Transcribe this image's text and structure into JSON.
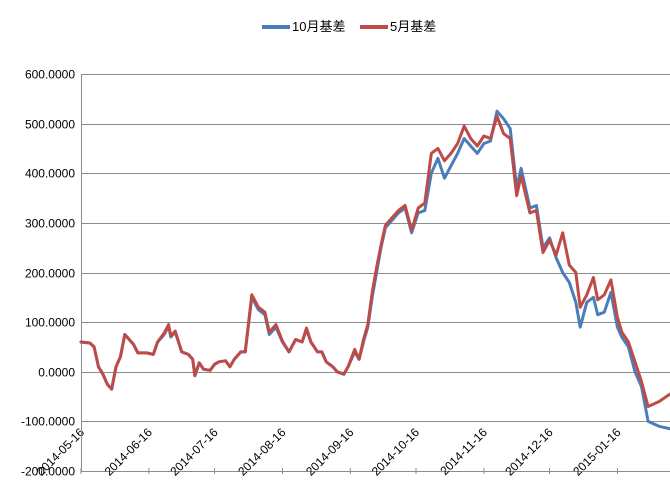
{
  "chart_data": {
    "type": "line",
    "title": "",
    "xlabel": "",
    "ylabel": "",
    "ylim": [
      -200,
      600
    ],
    "yticks": [
      "600.0000",
      "500.0000",
      "400.0000",
      "300.0000",
      "200.0000",
      "100.0000",
      "0.0000",
      "-100.0000",
      "-200.0000"
    ],
    "ytick_values": [
      600,
      500,
      400,
      300,
      200,
      100,
      0,
      -100,
      -200
    ],
    "xticks": [
      "2014-05-16",
      "2014-06-16",
      "2014-07-16",
      "2014-08-16",
      "2014-09-16",
      "2014-10-16",
      "2014-11-16",
      "2014-12-16",
      "2015-01-16"
    ],
    "xlim": [
      "2014-05-16",
      "2015-02-09"
    ],
    "grid": true,
    "legend_position": "top-center",
    "series": [
      {
        "name": "10月基差",
        "color": "#4a7ebb",
        "points": [
          [
            "2014-05-16",
            60
          ],
          [
            "2014-05-20",
            58
          ],
          [
            "2014-05-22",
            50
          ],
          [
            "2014-05-24",
            10
          ],
          [
            "2014-05-26",
            -5
          ],
          [
            "2014-05-28",
            -25
          ],
          [
            "2014-05-30",
            -35
          ],
          [
            "2014-06-01",
            10
          ],
          [
            "2014-06-03",
            30
          ],
          [
            "2014-06-05",
            75
          ],
          [
            "2014-06-09",
            55
          ],
          [
            "2014-06-11",
            38
          ],
          [
            "2014-06-15",
            38
          ],
          [
            "2014-06-18",
            35
          ],
          [
            "2014-06-20",
            60
          ],
          [
            "2014-06-23",
            75
          ],
          [
            "2014-06-25",
            92
          ],
          [
            "2014-06-26",
            70
          ],
          [
            "2014-06-28",
            80
          ],
          [
            "2014-07-01",
            40
          ],
          [
            "2014-07-04",
            35
          ],
          [
            "2014-07-06",
            25
          ],
          [
            "2014-07-07",
            -8
          ],
          [
            "2014-07-09",
            18
          ],
          [
            "2014-07-11",
            5
          ],
          [
            "2014-07-14",
            3
          ],
          [
            "2014-07-16",
            15
          ],
          [
            "2014-07-18",
            20
          ],
          [
            "2014-07-21",
            22
          ],
          [
            "2014-07-23",
            10
          ],
          [
            "2014-07-25",
            25
          ],
          [
            "2014-07-28",
            40
          ],
          [
            "2014-07-30",
            40
          ],
          [
            "2014-08-02",
            150
          ],
          [
            "2014-08-05",
            125
          ],
          [
            "2014-08-08",
            115
          ],
          [
            "2014-08-10",
            75
          ],
          [
            "2014-08-13",
            90
          ],
          [
            "2014-08-16",
            60
          ],
          [
            "2014-08-19",
            40
          ],
          [
            "2014-08-22",
            65
          ],
          [
            "2014-08-25",
            60
          ],
          [
            "2014-08-27",
            85
          ],
          [
            "2014-08-29",
            60
          ],
          [
            "2014-09-01",
            40
          ],
          [
            "2014-09-03",
            40
          ],
          [
            "2014-09-05",
            20
          ],
          [
            "2014-09-08",
            10
          ],
          [
            "2014-09-10",
            0
          ],
          [
            "2014-09-13",
            -5
          ],
          [
            "2014-09-15",
            10
          ],
          [
            "2014-09-18",
            40
          ],
          [
            "2014-09-20",
            25
          ],
          [
            "2014-09-22",
            60
          ],
          [
            "2014-09-24",
            90
          ],
          [
            "2014-09-26",
            150
          ],
          [
            "2014-09-28",
            200
          ],
          [
            "2014-09-30",
            250
          ],
          [
            "2014-10-02",
            290
          ],
          [
            "2014-10-04",
            300
          ],
          [
            "2014-10-08",
            320
          ],
          [
            "2014-10-11",
            330
          ],
          [
            "2014-10-14",
            280
          ],
          [
            "2014-10-17",
            320
          ],
          [
            "2014-10-20",
            325
          ],
          [
            "2014-10-23",
            400
          ],
          [
            "2014-10-26",
            430
          ],
          [
            "2014-10-29",
            390
          ],
          [
            "2014-11-01",
            415
          ],
          [
            "2014-11-04",
            440
          ],
          [
            "2014-11-07",
            470
          ],
          [
            "2014-11-10",
            455
          ],
          [
            "2014-11-13",
            440
          ],
          [
            "2014-11-16",
            460
          ],
          [
            "2014-11-19",
            465
          ],
          [
            "2014-11-22",
            525
          ],
          [
            "2014-11-25",
            510
          ],
          [
            "2014-11-28",
            490
          ],
          [
            "2014-12-01",
            370
          ],
          [
            "2014-12-03",
            410
          ],
          [
            "2014-12-07",
            330
          ],
          [
            "2014-12-10",
            335
          ],
          [
            "2014-12-13",
            250
          ],
          [
            "2014-12-16",
            270
          ],
          [
            "2014-12-19",
            230
          ],
          [
            "2014-12-22",
            200
          ],
          [
            "2014-12-25",
            180
          ],
          [
            "2014-12-28",
            140
          ],
          [
            "2014-12-30",
            90
          ],
          [
            "2015-01-02",
            140
          ],
          [
            "2015-01-05",
            150
          ],
          [
            "2015-01-07",
            115
          ],
          [
            "2015-01-10",
            120
          ],
          [
            "2015-01-13",
            160
          ],
          [
            "2015-01-16",
            90
          ],
          [
            "2015-01-18",
            70
          ],
          [
            "2015-01-21",
            50
          ],
          [
            "2015-01-24",
            0
          ],
          [
            "2015-01-27",
            -30
          ],
          [
            "2015-01-30",
            -100
          ],
          [
            "2015-02-04",
            -110
          ],
          [
            "2015-02-09",
            -115
          ]
        ]
      },
      {
        "name": "5月基差",
        "color": "#be4b48",
        "points": [
          [
            "2014-05-16",
            60
          ],
          [
            "2014-05-20",
            58
          ],
          [
            "2014-05-22",
            50
          ],
          [
            "2014-05-24",
            10
          ],
          [
            "2014-05-26",
            -5
          ],
          [
            "2014-05-28",
            -25
          ],
          [
            "2014-05-30",
            -35
          ],
          [
            "2014-06-01",
            10
          ],
          [
            "2014-06-03",
            30
          ],
          [
            "2014-06-05",
            75
          ],
          [
            "2014-06-09",
            55
          ],
          [
            "2014-06-11",
            38
          ],
          [
            "2014-06-15",
            38
          ],
          [
            "2014-06-18",
            35
          ],
          [
            "2014-06-20",
            60
          ],
          [
            "2014-06-23",
            78
          ],
          [
            "2014-06-25",
            95
          ],
          [
            "2014-06-26",
            72
          ],
          [
            "2014-06-28",
            82
          ],
          [
            "2014-07-01",
            40
          ],
          [
            "2014-07-04",
            35
          ],
          [
            "2014-07-06",
            25
          ],
          [
            "2014-07-07",
            -8
          ],
          [
            "2014-07-09",
            18
          ],
          [
            "2014-07-11",
            5
          ],
          [
            "2014-07-14",
            3
          ],
          [
            "2014-07-16",
            15
          ],
          [
            "2014-07-18",
            20
          ],
          [
            "2014-07-21",
            22
          ],
          [
            "2014-07-23",
            10
          ],
          [
            "2014-07-25",
            25
          ],
          [
            "2014-07-28",
            40
          ],
          [
            "2014-07-30",
            40
          ],
          [
            "2014-08-02",
            155
          ],
          [
            "2014-08-05",
            130
          ],
          [
            "2014-08-08",
            120
          ],
          [
            "2014-08-10",
            80
          ],
          [
            "2014-08-13",
            95
          ],
          [
            "2014-08-16",
            62
          ],
          [
            "2014-08-19",
            40
          ],
          [
            "2014-08-22",
            65
          ],
          [
            "2014-08-25",
            60
          ],
          [
            "2014-08-27",
            88
          ],
          [
            "2014-08-29",
            60
          ],
          [
            "2014-09-01",
            40
          ],
          [
            "2014-09-03",
            40
          ],
          [
            "2014-09-05",
            20
          ],
          [
            "2014-09-08",
            10
          ],
          [
            "2014-09-10",
            0
          ],
          [
            "2014-09-13",
            -5
          ],
          [
            "2014-09-15",
            10
          ],
          [
            "2014-09-18",
            45
          ],
          [
            "2014-09-20",
            25
          ],
          [
            "2014-09-22",
            65
          ],
          [
            "2014-09-24",
            95
          ],
          [
            "2014-09-26",
            160
          ],
          [
            "2014-09-28",
            210
          ],
          [
            "2014-09-30",
            255
          ],
          [
            "2014-10-02",
            295
          ],
          [
            "2014-10-04",
            305
          ],
          [
            "2014-10-08",
            325
          ],
          [
            "2014-10-11",
            335
          ],
          [
            "2014-10-14",
            285
          ],
          [
            "2014-10-17",
            330
          ],
          [
            "2014-10-20",
            340
          ],
          [
            "2014-10-23",
            440
          ],
          [
            "2014-10-26",
            450
          ],
          [
            "2014-10-29",
            425
          ],
          [
            "2014-11-01",
            440
          ],
          [
            "2014-11-04",
            460
          ],
          [
            "2014-11-07",
            495
          ],
          [
            "2014-11-10",
            470
          ],
          [
            "2014-11-13",
            455
          ],
          [
            "2014-11-16",
            475
          ],
          [
            "2014-11-19",
            470
          ],
          [
            "2014-11-22",
            515
          ],
          [
            "2014-11-25",
            480
          ],
          [
            "2014-11-28",
            470
          ],
          [
            "2014-12-01",
            355
          ],
          [
            "2014-12-03",
            395
          ],
          [
            "2014-12-07",
            320
          ],
          [
            "2014-12-10",
            325
          ],
          [
            "2014-12-13",
            240
          ],
          [
            "2014-12-16",
            265
          ],
          [
            "2014-12-19",
            235
          ],
          [
            "2014-12-22",
            280
          ],
          [
            "2014-12-25",
            215
          ],
          [
            "2014-12-28",
            200
          ],
          [
            "2014-12-30",
            130
          ],
          [
            "2015-01-02",
            155
          ],
          [
            "2015-01-05",
            190
          ],
          [
            "2015-01-07",
            145
          ],
          [
            "2015-01-10",
            155
          ],
          [
            "2015-01-13",
            185
          ],
          [
            "2015-01-16",
            110
          ],
          [
            "2015-01-18",
            80
          ],
          [
            "2015-01-21",
            60
          ],
          [
            "2015-01-24",
            20
          ],
          [
            "2015-01-27",
            -20
          ],
          [
            "2015-01-30",
            -70
          ],
          [
            "2015-02-04",
            -60
          ],
          [
            "2015-02-09",
            -45
          ]
        ]
      }
    ]
  }
}
